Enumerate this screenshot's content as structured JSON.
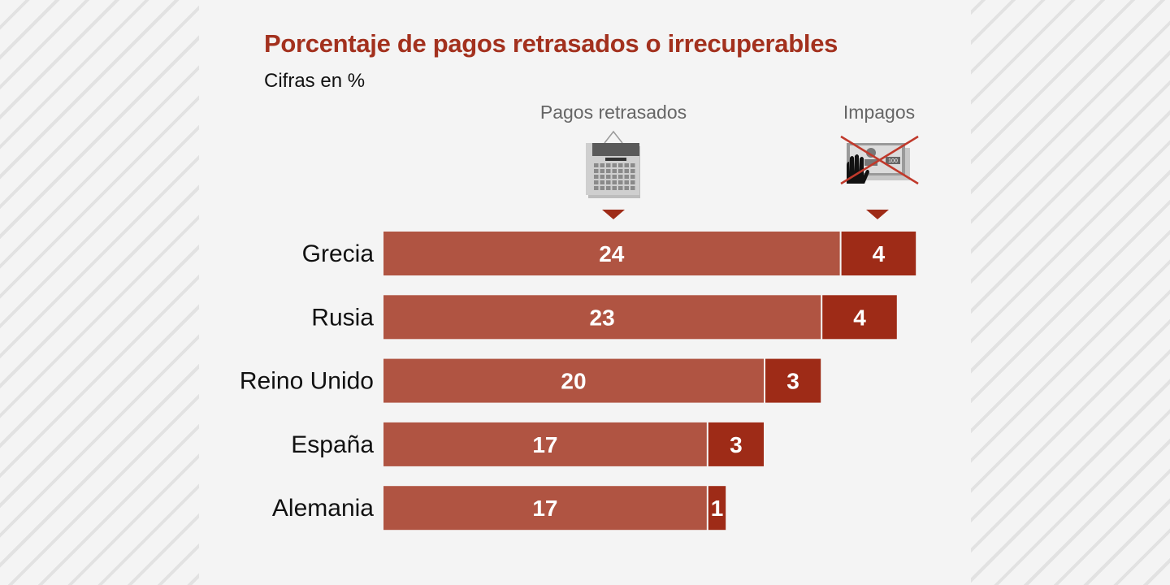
{
  "chart_data": {
    "type": "bar",
    "orientation": "horizontal",
    "stacked": true,
    "title": "Porcentaje de pagos retrasados o irrecuperables",
    "subtitle": "Cifras en %",
    "categories": [
      "Grecia",
      "Rusia",
      "Reino Unido",
      "España",
      "Alemania"
    ],
    "series": [
      {
        "name": "Pagos retrasados",
        "values": [
          24,
          23,
          20,
          17,
          17
        ],
        "color": "#b05442",
        "icon": "calendar-icon"
      },
      {
        "name": "Impagos",
        "values": [
          4,
          4,
          3,
          3,
          1
        ],
        "color": "#9e2b17",
        "icon": "crossed-out-banknote-icon"
      }
    ],
    "grid": false,
    "legend": "top"
  }
}
